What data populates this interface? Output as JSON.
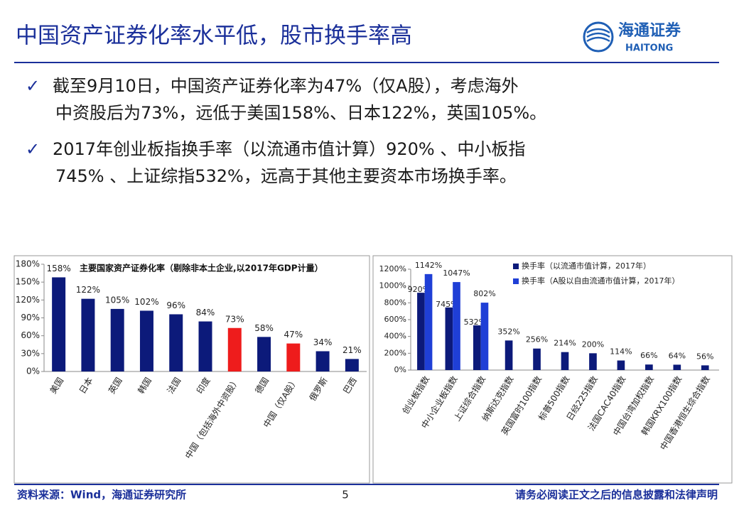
{
  "header": {
    "title": "中国资产证券化率水平低，股市换手率高",
    "logo_cn": "海通证券",
    "logo_en": "HAITONG"
  },
  "bullets": [
    {
      "lines": [
        "截至9月10日，中国资产证券化率为47%（仅A股），考虑海外",
        "中资股后为73%，远低于美国158%、日本122%，英国105%。"
      ]
    },
    {
      "lines": [
        "2017年创业板指换手率（以流通市值计算）920% 、中小板指",
        "745% 、上证综指532%，远高于其他主要资本市场换手率。"
      ]
    }
  ],
  "chart_data": [
    {
      "type": "bar",
      "title": "主要国家资产证券化率（剔除非本土企业,以2017年GDP计量）",
      "categories": [
        "美国",
        "日本",
        "英国",
        "韩国",
        "法国",
        "印度",
        "中国（包括海外中资股）",
        "德国",
        "中国（仅A股）",
        "俄罗斯",
        "巴西"
      ],
      "series": [
        {
          "name": null,
          "colors": [
            "#0c1a7a",
            "#0c1a7a",
            "#0c1a7a",
            "#0c1a7a",
            "#0c1a7a",
            "#0c1a7a",
            "#ee1c1c",
            "#0c1a7a",
            "#ee1c1c",
            "#0c1a7a",
            "#0c1a7a"
          ],
          "values": [
            158,
            122,
            105,
            102,
            96,
            84,
            73,
            58,
            47,
            34,
            21
          ],
          "value_labels": [
            "158%",
            "122%",
            "105%",
            "102%",
            "96%",
            "84%",
            "73%",
            "58%",
            "47%",
            "34%",
            "21%"
          ]
        }
      ],
      "ylim": [
        0,
        180
      ],
      "yticks": [
        {
          "value": 0,
          "label": "0%"
        },
        {
          "value": 30,
          "label": "30%"
        },
        {
          "value": 60,
          "label": "60%"
        },
        {
          "value": 90,
          "label": "90%"
        },
        {
          "value": 120,
          "label": "120%"
        },
        {
          "value": 150,
          "label": "150%"
        },
        {
          "value": 180,
          "label": "180%"
        }
      ]
    },
    {
      "type": "bar",
      "categories": [
        "创业板指数",
        "中小企业板指数",
        "上证综合指数",
        "纳斯达克指数",
        "英国富时100指数",
        "标普500指数",
        "日经225指数",
        "法国CAC40指数",
        "中国台湾加权指数",
        "韩国KRX100指数",
        "中国香港恒生综合指数"
      ],
      "series": [
        {
          "name": "换手率（以流通市值计算，2017年）",
          "color": "#0c1a7a",
          "values": [
            920,
            745,
            532,
            352,
            256,
            214,
            200,
            114,
            66,
            64,
            56
          ],
          "value_labels": [
            "920%",
            "745%",
            "532%",
            "352%",
            "256%",
            "214%",
            "200%",
            "114%",
            "66%",
            "64%",
            "56%"
          ]
        },
        {
          "name": "换手率（A股以自由流通市值计算，2017年）",
          "color": "#1f3fd6",
          "values": [
            1142,
            1047,
            802,
            null,
            null,
            null,
            null,
            null,
            null,
            null,
            null
          ],
          "value_labels": [
            "1142%",
            "1047%",
            "802%",
            null,
            null,
            null,
            null,
            null,
            null,
            null,
            null
          ]
        }
      ],
      "ylim": [
        0,
        1200
      ],
      "yticks": [
        {
          "value": 0,
          "label": "0%"
        },
        {
          "value": 200,
          "label": "200%"
        },
        {
          "value": 400,
          "label": "400%"
        },
        {
          "value": 600,
          "label": "600%"
        },
        {
          "value": 800,
          "label": "800%"
        },
        {
          "value": 1000,
          "label": "1000%"
        },
        {
          "value": 1200,
          "label": "1200%"
        }
      ],
      "legend": "top-right"
    }
  ],
  "footer": {
    "source": "资料来源：Wind，海通证券研究所",
    "page": "5",
    "disclaimer": "请务必阅读正文之后的信息披露和法律声明"
  }
}
